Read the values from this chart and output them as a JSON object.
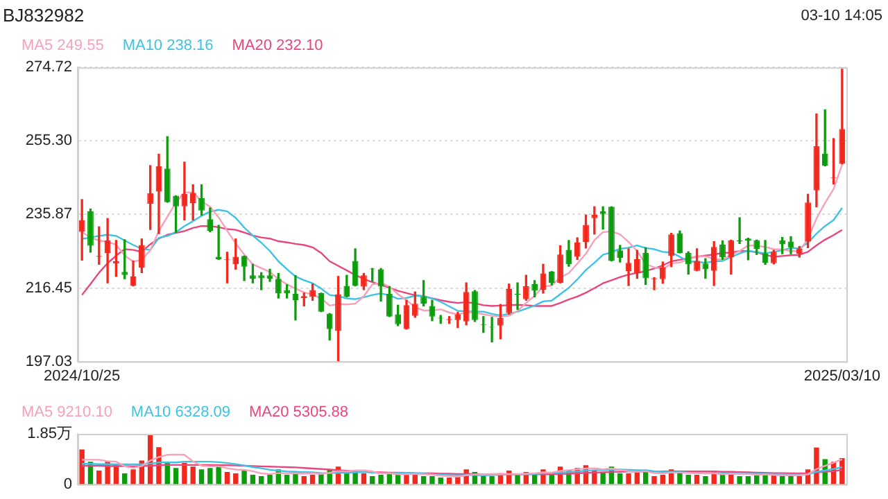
{
  "chart_data": [
    {
      "type": "candlestick",
      "title": "BJ832982",
      "annotations": [
        "03-10 14:05"
      ],
      "legend": "top left",
      "grid": "y",
      "categories": [
        "2024/10/25",
        null,
        null,
        null,
        null,
        null,
        null,
        null,
        null,
        null,
        null,
        null,
        null,
        null,
        null,
        null,
        null,
        null,
        null,
        null,
        null,
        null,
        null,
        null,
        null,
        null,
        null,
        null,
        null,
        null,
        null,
        null,
        null,
        null,
        null,
        null,
        null,
        null,
        null,
        null,
        null,
        null,
        null,
        null,
        null,
        null,
        null,
        null,
        null,
        null,
        null,
        null,
        null,
        null,
        null,
        null,
        null,
        null,
        null,
        null,
        null,
        null,
        null,
        null,
        null,
        null,
        null,
        null,
        null,
        null,
        null,
        null,
        null,
        null,
        null,
        null,
        null,
        null,
        null,
        null,
        null,
        null,
        null,
        null,
        null,
        null,
        null,
        null,
        null,
        "2025/03/10"
      ],
      "ohlc": [
        [
          231.3,
          239.8,
          223.8,
          234.4
        ],
        [
          236.7,
          237.3,
          225.9,
          227.6
        ],
        [
          224.7,
          232.6,
          222.7,
          224.9
        ],
        [
          225.7,
          234.8,
          217.8,
          229.0
        ],
        [
          222.9,
          229.0,
          219.5,
          223.5
        ],
        [
          220.7,
          229.2,
          218.9,
          219.9
        ],
        [
          217.0,
          223.6,
          217.0,
          219.5
        ],
        [
          221.8,
          229.4,
          220.5,
          227.8
        ],
        [
          238.7,
          248.8,
          231.9,
          241.5
        ],
        [
          241.9,
          251.8,
          230.8,
          248.6
        ],
        [
          248.0,
          256.4,
          239.1,
          239.1
        ],
        [
          240.8,
          240.8,
          231.1,
          238.0
        ],
        [
          238.0,
          249.7,
          234.4,
          241.3
        ],
        [
          238.9,
          243.7,
          234.4,
          241.6
        ],
        [
          240.2,
          243.7,
          235.7,
          236.9
        ],
        [
          234.6,
          237.6,
          231.3,
          231.5
        ],
        [
          224.7,
          233.0,
          224.0,
          224.0
        ],
        [
          223.8,
          225.9,
          217.8,
          224.0
        ],
        [
          222.7,
          229.4,
          221.4,
          224.7
        ],
        [
          224.9,
          224.9,
          218.4,
          222.1
        ],
        [
          219.8,
          222.7,
          217.8,
          218.9
        ],
        [
          219.8,
          220.5,
          216.0,
          219.0
        ],
        [
          219.8,
          221.4,
          218.2,
          218.9
        ],
        [
          218.9,
          220.3,
          213.8,
          215.1
        ],
        [
          215.9,
          217.3,
          213.8,
          215.1
        ],
        [
          214.9,
          219.7,
          208.0,
          213.2
        ],
        [
          213.8,
          215.1,
          211.7,
          214.3
        ],
        [
          214.1,
          217.5,
          213.2,
          215.9
        ],
        [
          215.1,
          215.1,
          210.2,
          210.2
        ],
        [
          209.7,
          209.7,
          202.7,
          205.6
        ],
        [
          205.1,
          219.5,
          197.1,
          214.8
        ],
        [
          217.0,
          219.8,
          214.1,
          214.1
        ],
        [
          223.6,
          226.8,
          217.0,
          217.0
        ],
        [
          216.8,
          220.3,
          216.0,
          219.8
        ],
        [
          221.6,
          221.6,
          218.2,
          221.4
        ],
        [
          221.4,
          221.6,
          213.0,
          216.8
        ],
        [
          214.9,
          216.8,
          208.9,
          208.9
        ],
        [
          209.5,
          211.9,
          206.5,
          206.9
        ],
        [
          205.6,
          213.2,
          205.6,
          211.9
        ],
        [
          209.1,
          215.4,
          208.7,
          212.3
        ],
        [
          214.1,
          218.4,
          211.7,
          212.3
        ],
        [
          211.7,
          213.2,
          207.8,
          208.9
        ],
        [
          208.6,
          209.2,
          207.1,
          208.4
        ],
        [
          208.0,
          208.9,
          207.1,
          208.2
        ],
        [
          208.0,
          210.0,
          206.0,
          209.4
        ],
        [
          207.6,
          217.8,
          206.7,
          215.4
        ],
        [
          215.6,
          215.8,
          207.6,
          208.0
        ],
        [
          206.8,
          208.9,
          204.7,
          206.6
        ],
        [
          206.2,
          208.7,
          202.2,
          206.0
        ],
        [
          206.5,
          212.1,
          203.0,
          208.5
        ],
        [
          209.8,
          217.5,
          209.5,
          216.2
        ],
        [
          214.9,
          217.8,
          210.8,
          214.7
        ],
        [
          213.5,
          219.8,
          213.2,
          216.9
        ],
        [
          217.5,
          218.4,
          214.1,
          215.7
        ],
        [
          216.0,
          222.7,
          215.1,
          220.3
        ],
        [
          220.8,
          220.8,
          217.3,
          217.8
        ],
        [
          217.8,
          227.6,
          217.8,
          225.3
        ],
        [
          226.5,
          229.0,
          222.2,
          222.7
        ],
        [
          224.7,
          229.7,
          224.0,
          228.5
        ],
        [
          228.6,
          235.7,
          227.0,
          233.1
        ],
        [
          234.9,
          237.9,
          230.7,
          235.8
        ],
        [
          236.7,
          237.9,
          232.0,
          236.0
        ],
        [
          237.9,
          237.9,
          223.6,
          223.6
        ],
        [
          226.4,
          227.7,
          223.3,
          224.4
        ],
        [
          220.9,
          226.8,
          217.1,
          223.1
        ],
        [
          220.4,
          226.4,
          219.0,
          224.1
        ],
        [
          225.7,
          227.1,
          217.4,
          219.0
        ],
        [
          218.8,
          219.2,
          216.0,
          219.0
        ],
        [
          218.8,
          223.3,
          217.7,
          221.9
        ],
        [
          224.9,
          230.9,
          222.1,
          230.6
        ],
        [
          230.9,
          231.5,
          225.7,
          225.7
        ],
        [
          225.7,
          226.0,
          220.1,
          222.7
        ],
        [
          221.0,
          226.8,
          221.0,
          223.6
        ],
        [
          222.9,
          224.2,
          219.0,
          221.4
        ],
        [
          221.0,
          228.7,
          217.1,
          227.3
        ],
        [
          227.9,
          228.9,
          224.0,
          224.6
        ],
        [
          224.6,
          229.1,
          220.1,
          229.0
        ],
        [
          229.0,
          235.0,
          228.2,
          228.7
        ],
        [
          229.5,
          229.6,
          223.9,
          229.0
        ],
        [
          229.0,
          229.1,
          225.3,
          226.8
        ],
        [
          225.5,
          229.0,
          222.7,
          223.1
        ],
        [
          223.0,
          226.4,
          222.8,
          226.0
        ],
        [
          229.0,
          229.8,
          225.5,
          228.0
        ],
        [
          228.7,
          230.0,
          225.5,
          227.1
        ],
        [
          225.5,
          227.4,
          224.6,
          226.8
        ],
        [
          228.7,
          241.2,
          227.1,
          239.0
        ],
        [
          242.2,
          262.4,
          237.9,
          253.9
        ],
        [
          251.9,
          263.5,
          248.7,
          248.7
        ],
        [
          245.5,
          255.9,
          243.9,
          245.7
        ],
        [
          249.2,
          274.7,
          249.2,
          258.4
        ]
      ],
      "colors": [
        "#f0281e",
        "#0c9c0c",
        "#f0281e",
        "#f0281e",
        "#f0281e",
        "#0c9c0c",
        "#f0281e",
        "#f0281e",
        "#f0281e",
        "#f0281e",
        "#0c9c0c",
        "#0c9c0c",
        "#f0281e",
        "#f0281e",
        "#0c9c0c",
        "#0c9c0c",
        "#0c9c0c",
        "#f0281e",
        "#f0281e",
        "#0c9c0c",
        "#0c9c0c",
        "#0c9c0c",
        "#0c9c0c",
        "#0c9c0c",
        "#0c9c0c",
        "#0c9c0c",
        "#f0281e",
        "#f0281e",
        "#0c9c0c",
        "#0c9c0c",
        "#f0281e",
        "#0c9c0c",
        "#0c9c0c",
        "#f0281e",
        "#0c9c0c",
        "#0c9c0c",
        "#0c9c0c",
        "#0c9c0c",
        "#f0281e",
        "#f0281e",
        "#0c9c0c",
        "#0c9c0c",
        "#0c9c0c",
        "#f0281e",
        "#f0281e",
        "#f0281e",
        "#0c9c0c",
        "#0c9c0c",
        "#0c9c0c",
        "#f0281e",
        "#f0281e",
        "#0c9c0c",
        "#f0281e",
        "#0c9c0c",
        "#f0281e",
        "#0c9c0c",
        "#f0281e",
        "#0c9c0c",
        "#f0281e",
        "#f0281e",
        "#f0281e",
        "#0c9c0c",
        "#0c9c0c",
        "#0c9c0c",
        "#f0281e",
        "#f0281e",
        "#0c9c0c",
        "#f0281e",
        "#f0281e",
        "#f0281e",
        "#0c9c0c",
        "#0c9c0c",
        "#f0281e",
        "#0c9c0c",
        "#f0281e",
        "#0c9c0c",
        "#f0281e",
        "#0c9c0c",
        "#0c9c0c",
        "#0c9c0c",
        "#0c9c0c",
        "#f0281e",
        "#0c9c0c",
        "#0c9c0c",
        "#f0281e",
        "#f0281e",
        "#f0281e",
        "#0c9c0c",
        "#f0281e",
        "#f0281e"
      ],
      "ylim": [
        197.03,
        274.72
      ],
      "yticks": [
        197.03,
        216.45,
        235.87,
        {
          "value": 255.3,
          "label": "255.30"
        },
        274.72
      ],
      "series": [
        {
          "type": "line",
          "name": "MA5 249.55",
          "color": "#f7a1bb",
          "values": [
            231.3,
            229.7,
            229.0,
            228.6,
            227.9,
            225.0,
            223.4,
            223.9,
            226.4,
            231.5,
            235.3,
            239.0,
            241.7,
            241.7,
            239.4,
            237.9,
            235.1,
            231.6,
            228.2,
            225.3,
            222.7,
            221.7,
            220.7,
            218.8,
            217.4,
            216.3,
            215.3,
            214.7,
            213.7,
            211.8,
            212.2,
            212.1,
            212.3,
            214.3,
            217.4,
            217.8,
            216.8,
            214.8,
            213.2,
            211.4,
            210.5,
            210.5,
            210.8,
            210.0,
            209.4,
            210.1,
            209.9,
            209.5,
            209.1,
            208.9,
            209.1,
            210.4,
            212.5,
            214.4,
            216.8,
            217.1,
            219.2,
            220.4,
            222.9,
            225.5,
            229.1,
            231.2,
            231.4,
            230.6,
            228.6,
            226.2,
            222.8,
            221.9,
            221.4,
            222.9,
            223.2,
            224.0,
            224.9,
            224.8,
            224.1,
            223.9,
            225.2,
            226.2,
            227.7,
            227.6,
            227.3,
            226.7,
            226.6,
            226.2,
            226.2,
            229.4,
            234.8,
            238.9,
            242.6,
            249.0
          ]
        },
        {
          "type": "line",
          "name": "MA10 238.16",
          "color": "#3ec3e3",
          "values": [
            229.4,
            229.8,
            230.2,
            230.5,
            230.2,
            229.0,
            227.8,
            226.8,
            226.5,
            229.7,
            230.2,
            231.2,
            232.8,
            234.1,
            235.5,
            236.6,
            237.1,
            236.7,
            235.0,
            232.4,
            230.3,
            228.4,
            226.2,
            223.5,
            221.4,
            219.5,
            218.5,
            217.7,
            216.3,
            214.6,
            214.3,
            213.7,
            213.5,
            214.0,
            214.6,
            215.0,
            214.5,
            213.6,
            213.8,
            214.4,
            214.2,
            213.7,
            212.8,
            211.6,
            210.4,
            210.3,
            210.2,
            210.2,
            209.6,
            209.2,
            209.6,
            210.2,
            211.0,
            211.8,
            212.9,
            213.1,
            214.8,
            216.5,
            218.7,
            221.2,
            223.1,
            225.2,
            225.9,
            226.8,
            227.1,
            227.7,
            227.0,
            226.7,
            226.0,
            225.8,
            224.7,
            223.4,
            223.4,
            223.1,
            223.5,
            223.6,
            224.6,
            225.6,
            226.3,
            225.9,
            225.6,
            226.0,
            226.4,
            227.0,
            226.9,
            228.4,
            230.8,
            232.8,
            234.4,
            237.6
          ]
        },
        {
          "type": "line",
          "name": "MA20 232.10",
          "color": "#e8467c",
          "values": [
            214.6,
            217.5,
            220.5,
            223.0,
            225.0,
            226.7,
            226.5,
            226.0,
            228.0,
            229.5,
            230.5,
            231.0,
            231.5,
            232.3,
            232.8,
            232.8,
            232.5,
            232.0,
            231.8,
            231.1,
            230.3,
            229.8,
            229.5,
            228.8,
            228.5,
            228.1,
            227.8,
            227.2,
            225.7,
            223.5,
            222.3,
            221.1,
            219.9,
            218.8,
            218.0,
            217.3,
            216.5,
            215.7,
            215.1,
            214.5,
            214.3,
            213.7,
            213.2,
            212.8,
            212.5,
            212.7,
            212.4,
            211.9,
            211.7,
            211.8,
            211.9,
            212.0,
            211.9,
            211.7,
            211.7,
            211.7,
            212.5,
            213.4,
            214.2,
            215.2,
            216.4,
            217.7,
            218.5,
            219.3,
            220.0,
            220.4,
            220.9,
            221.6,
            222.4,
            223.5,
            223.9,
            224.3,
            224.7,
            225.0,
            225.3,
            225.7,
            225.8,
            226.2,
            226.2,
            225.9,
            225.2,
            224.7,
            224.9,
            225.1,
            225.2,
            226.0,
            227.7,
            229.2,
            230.4,
            231.8
          ]
        }
      ]
    },
    {
      "type": "bar",
      "legend": "top left",
      "tick_labels": "y",
      "categories": [
        "2024/10/25",
        null,
        null,
        null,
        null,
        null,
        null,
        null,
        null,
        null,
        null,
        null,
        null,
        null,
        null,
        null,
        null,
        null,
        null,
        null,
        null,
        null,
        null,
        null,
        null,
        null,
        null,
        null,
        null,
        null,
        null,
        null,
        null,
        null,
        null,
        null,
        null,
        null,
        null,
        null,
        null,
        null,
        null,
        null,
        null,
        null,
        null,
        null,
        null,
        null,
        null,
        null,
        null,
        null,
        null,
        null,
        null,
        null,
        null,
        null,
        null,
        null,
        null,
        null,
        null,
        null,
        null,
        null,
        null,
        null,
        null,
        null,
        null,
        null,
        null,
        null,
        null,
        null,
        null,
        null,
        null,
        null,
        null,
        null,
        null,
        null,
        null,
        null,
        null,
        "2025/03/10"
      ],
      "values": [
        1.28,
        0.83,
        0.5,
        0.83,
        0.72,
        0.4,
        0.55,
        0.87,
        1.81,
        1.36,
        0.83,
        0.6,
        0.79,
        0.65,
        0.55,
        0.6,
        0.7,
        0.45,
        0.4,
        0.5,
        0.35,
        0.3,
        0.35,
        0.55,
        0.35,
        0.45,
        0.3,
        0.35,
        0.4,
        0.55,
        0.65,
        0.45,
        0.5,
        0.4,
        0.3,
        0.35,
        0.45,
        0.35,
        0.4,
        0.35,
        0.3,
        0.3,
        0.25,
        0.25,
        0.3,
        0.55,
        0.45,
        0.3,
        0.3,
        0.35,
        0.5,
        0.35,
        0.45,
        0.35,
        0.55,
        0.45,
        0.65,
        0.5,
        0.6,
        0.7,
        0.5,
        0.45,
        0.65,
        0.4,
        0.4,
        0.45,
        0.5,
        0.3,
        0.35,
        0.55,
        0.45,
        0.35,
        0.35,
        0.3,
        0.5,
        0.35,
        0.45,
        0.3,
        0.3,
        0.35,
        0.4,
        0.35,
        0.3,
        0.3,
        0.3,
        0.55,
        1.35,
        0.92,
        0.83,
        0.96
      ],
      "colors": [
        "#f0281e",
        "#0c9c0c",
        "#f0281e",
        "#f0281e",
        "#f0281e",
        "#0c9c0c",
        "#f0281e",
        "#f0281e",
        "#f0281e",
        "#f0281e",
        "#0c9c0c",
        "#0c9c0c",
        "#f0281e",
        "#f0281e",
        "#0c9c0c",
        "#0c9c0c",
        "#0c9c0c",
        "#f0281e",
        "#f0281e",
        "#0c9c0c",
        "#0c9c0c",
        "#0c9c0c",
        "#0c9c0c",
        "#0c9c0c",
        "#0c9c0c",
        "#0c9c0c",
        "#f0281e",
        "#f0281e",
        "#0c9c0c",
        "#0c9c0c",
        "#f0281e",
        "#0c9c0c",
        "#0c9c0c",
        "#f0281e",
        "#0c9c0c",
        "#0c9c0c",
        "#0c9c0c",
        "#0c9c0c",
        "#f0281e",
        "#f0281e",
        "#0c9c0c",
        "#0c9c0c",
        "#0c9c0c",
        "#f0281e",
        "#f0281e",
        "#f0281e",
        "#0c9c0c",
        "#0c9c0c",
        "#0c9c0c",
        "#f0281e",
        "#f0281e",
        "#0c9c0c",
        "#f0281e",
        "#0c9c0c",
        "#f0281e",
        "#0c9c0c",
        "#f0281e",
        "#0c9c0c",
        "#f0281e",
        "#f0281e",
        "#f0281e",
        "#0c9c0c",
        "#0c9c0c",
        "#0c9c0c",
        "#f0281e",
        "#f0281e",
        "#0c9c0c",
        "#f0281e",
        "#f0281e",
        "#f0281e",
        "#0c9c0c",
        "#0c9c0c",
        "#f0281e",
        "#0c9c0c",
        "#f0281e",
        "#0c9c0c",
        "#f0281e",
        "#0c9c0c",
        "#0c9c0c",
        "#0c9c0c",
        "#0c9c0c",
        "#f0281e",
        "#0c9c0c",
        "#0c9c0c",
        "#f0281e",
        "#f0281e",
        "#f0281e",
        "#0c9c0c",
        "#f0281e",
        "#f0281e"
      ],
      "ylim": [
        0,
        1.85
      ],
      "yticks": [
        0,
        {
          "value": 1.85,
          "label": "1.85万"
        }
      ],
      "series": [
        {
          "type": "line",
          "name": "MA5 9210.10",
          "color": "#f7a1bb",
          "values": [
            0.9,
            0.9,
            0.9,
            0.85,
            0.83,
            0.66,
            0.6,
            0.67,
            0.87,
            1.0,
            1.08,
            1.09,
            1.08,
            0.84,
            0.68,
            0.66,
            0.66,
            0.59,
            0.54,
            0.53,
            0.48,
            0.4,
            0.38,
            0.41,
            0.4,
            0.4,
            0.39,
            0.4,
            0.38,
            0.42,
            0.48,
            0.48,
            0.51,
            0.51,
            0.47,
            0.4,
            0.4,
            0.37,
            0.37,
            0.38,
            0.37,
            0.35,
            0.32,
            0.3,
            0.28,
            0.33,
            0.36,
            0.37,
            0.38,
            0.39,
            0.38,
            0.38,
            0.39,
            0.4,
            0.44,
            0.43,
            0.49,
            0.52,
            0.55,
            0.58,
            0.59,
            0.55,
            0.58,
            0.53,
            0.48,
            0.46,
            0.48,
            0.41,
            0.4,
            0.43,
            0.43,
            0.42,
            0.41,
            0.4,
            0.4,
            0.37,
            0.39,
            0.38,
            0.38,
            0.35,
            0.36,
            0.34,
            0.33,
            0.33,
            0.33,
            0.36,
            0.56,
            0.68,
            0.79,
            0.92
          ]
        },
        {
          "type": "line",
          "name": "MA10 6328.09",
          "color": "#3ec3e3",
          "values": [
            0.75,
            0.75,
            0.74,
            0.74,
            0.73,
            0.73,
            0.73,
            0.74,
            0.76,
            0.8,
            0.8,
            0.8,
            0.83,
            0.83,
            0.83,
            0.83,
            0.81,
            0.78,
            0.74,
            0.69,
            0.63,
            0.59,
            0.53,
            0.5,
            0.47,
            0.46,
            0.45,
            0.44,
            0.41,
            0.41,
            0.42,
            0.42,
            0.44,
            0.45,
            0.43,
            0.41,
            0.41,
            0.42,
            0.42,
            0.4,
            0.39,
            0.37,
            0.35,
            0.34,
            0.33,
            0.34,
            0.34,
            0.33,
            0.34,
            0.35,
            0.36,
            0.36,
            0.37,
            0.38,
            0.4,
            0.41,
            0.43,
            0.45,
            0.47,
            0.5,
            0.52,
            0.52,
            0.53,
            0.54,
            0.53,
            0.52,
            0.52,
            0.48,
            0.46,
            0.45,
            0.45,
            0.43,
            0.42,
            0.4,
            0.41,
            0.4,
            0.4,
            0.39,
            0.39,
            0.39,
            0.39,
            0.38,
            0.38,
            0.36,
            0.36,
            0.36,
            0.46,
            0.51,
            0.56,
            0.63
          ]
        },
        {
          "type": "line",
          "name": "MA20 5305.88",
          "color": "#e8467c",
          "values": [
            0.68,
            0.68,
            0.68,
            0.67,
            0.67,
            0.67,
            0.66,
            0.67,
            0.68,
            0.7,
            0.71,
            0.71,
            0.71,
            0.71,
            0.71,
            0.71,
            0.7,
            0.7,
            0.69,
            0.68,
            0.67,
            0.66,
            0.65,
            0.64,
            0.63,
            0.62,
            0.6,
            0.58,
            0.56,
            0.54,
            0.52,
            0.5,
            0.48,
            0.47,
            0.45,
            0.44,
            0.43,
            0.43,
            0.42,
            0.41,
            0.4,
            0.4,
            0.39,
            0.39,
            0.38,
            0.38,
            0.38,
            0.37,
            0.37,
            0.37,
            0.37,
            0.37,
            0.37,
            0.37,
            0.37,
            0.37,
            0.38,
            0.39,
            0.4,
            0.42,
            0.43,
            0.44,
            0.45,
            0.46,
            0.47,
            0.47,
            0.47,
            0.47,
            0.47,
            0.47,
            0.47,
            0.47,
            0.47,
            0.47,
            0.47,
            0.46,
            0.46,
            0.45,
            0.44,
            0.43,
            0.42,
            0.41,
            0.41,
            0.4,
            0.4,
            0.41,
            0.44,
            0.46,
            0.48,
            0.53
          ]
        }
      ]
    }
  ]
}
